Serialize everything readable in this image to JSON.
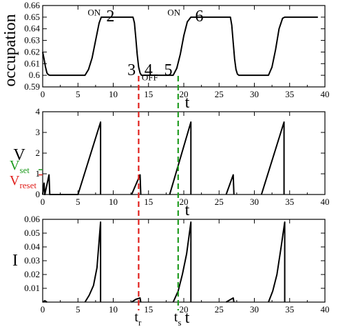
{
  "chart_data": [
    {
      "type": "line",
      "ylabel": "occupation",
      "xlabel": "t",
      "xlim": [
        0,
        40
      ],
      "ylim": [
        0.59,
        0.66
      ],
      "xticks": [
        0,
        5,
        10,
        15,
        20,
        25,
        30,
        35,
        40
      ],
      "yticks": [
        0.59,
        0.6,
        0.61,
        0.62,
        0.63,
        0.64,
        0.65,
        0.66
      ],
      "ytick_labels": [
        "0.59",
        "0.6",
        "0.61",
        "0.62",
        "0.63",
        "0.64",
        "0.65",
        "0.66"
      ],
      "series": [
        {
          "x": [
            0,
            0.2,
            0.4,
            0.6,
            0.8,
            1,
            6,
            6.5,
            7,
            7.5,
            8,
            8.3,
            12.8,
            13,
            13.2,
            13.4,
            13.6,
            13.8,
            14,
            18.5,
            19,
            19.5,
            20,
            20.5,
            21,
            21.3,
            26.6,
            26.8,
            27,
            27.2,
            27.4,
            27.6,
            27.8,
            32,
            32.5,
            33,
            33.5,
            34,
            34.3,
            39
          ],
          "y": [
            0.62,
            0.614,
            0.607,
            0.602,
            0.6005,
            0.6,
            0.6,
            0.605,
            0.615,
            0.63,
            0.645,
            0.65,
            0.65,
            0.645,
            0.632,
            0.618,
            0.607,
            0.602,
            0.6,
            0.6,
            0.606,
            0.618,
            0.634,
            0.646,
            0.65,
            0.65,
            0.65,
            0.643,
            0.628,
            0.614,
            0.605,
            0.601,
            0.6,
            0.6,
            0.607,
            0.622,
            0.64,
            0.649,
            0.65,
            0.65
          ]
        }
      ],
      "annotations": [
        {
          "text": "ON",
          "x": 7.3,
          "y": 0.6515
        },
        {
          "text": "2",
          "x": 9.6,
          "y": 0.6465
        },
        {
          "text": "ON",
          "x": 18.6,
          "y": 0.6515
        },
        {
          "text": "6",
          "x": 22.2,
          "y": 0.6465
        },
        {
          "text": "3",
          "x": 12.6,
          "y": 0.6
        },
        {
          "text": "4",
          "x": 15.0,
          "y": 0.6
        },
        {
          "text": "5",
          "x": 17.8,
          "y": 0.6
        },
        {
          "text": "OFF",
          "x": 15.2,
          "y": 0.5955
        }
      ]
    },
    {
      "type": "line",
      "ylabel": "V",
      "xlabel": "t",
      "xlim": [
        0,
        40
      ],
      "ylim": [
        0,
        4
      ],
      "xticks": [
        0,
        5,
        10,
        15,
        20,
        25,
        30,
        35,
        40
      ],
      "yticks": [
        0,
        1,
        2,
        3,
        4
      ],
      "ytick_labels": [
        "0",
        "1",
        "2",
        "3",
        "4"
      ],
      "series": [
        {
          "segments": [
            [
              [
                0,
                0
              ],
              [
                0.2,
                0.55
              ],
              [
                0.3,
                0
              ],
              [
                0.9,
                0.95
              ],
              [
                1,
                0
              ],
              [
                5,
                0
              ],
              [
                8.2,
                3.5
              ],
              [
                8.2,
                0
              ]
            ],
            [
              [
                12.6,
                0
              ],
              [
                13.8,
                0.95
              ],
              [
                13.9,
                0
              ]
            ],
            [
              [
                18,
                0
              ],
              [
                21,
                3.5
              ],
              [
                21,
                0
              ]
            ],
            [
              [
                26,
                0
              ],
              [
                27,
                0.95
              ],
              [
                27.1,
                0
              ]
            ],
            [
              [
                31,
                0
              ],
              [
                34.2,
                3.5
              ],
              [
                34.2,
                0
              ]
            ]
          ]
        }
      ],
      "extra_labels": [
        {
          "text": "V",
          "sub": "set",
          "color": "#1f9b1f",
          "y": 1.2
        },
        {
          "text": "V",
          "sub": "reset",
          "color": "#e0201c",
          "y": 0.95
        }
      ]
    },
    {
      "type": "line",
      "ylabel": "I",
      "xlabel": "t",
      "xlim": [
        0,
        40
      ],
      "ylim": [
        0,
        0.06
      ],
      "xticks": [
        0,
        5,
        10,
        15,
        20,
        25,
        30,
        35,
        40
      ],
      "yticks": [
        0.01,
        0.02,
        0.03,
        0.04,
        0.05,
        0.06
      ],
      "ytick_labels": [
        "0.01",
        "0.02",
        "0.03",
        "0.04",
        "0.05",
        "0.06"
      ],
      "series": [
        {
          "segments": [
            [
              [
                0,
                0
              ],
              [
                0.3,
                0.001
              ],
              [
                0.6,
                0
              ]
            ],
            [
              [
                6,
                0
              ],
              [
                6.6,
                0.005
              ],
              [
                7.2,
                0.012
              ],
              [
                7.7,
                0.025
              ],
              [
                8.2,
                0.058
              ],
              [
                8.2,
                0
              ]
            ],
            [
              [
                12.6,
                0
              ],
              [
                13.2,
                0.002
              ],
              [
                13.8,
                0.003
              ],
              [
                13.9,
                0
              ]
            ],
            [
              [
                18.5,
                0
              ],
              [
                19.2,
                0.008
              ],
              [
                19.8,
                0.02
              ],
              [
                20.4,
                0.035
              ],
              [
                21,
                0.058
              ],
              [
                21,
                0
              ]
            ],
            [
              [
                26,
                0
              ],
              [
                26.5,
                0.0015
              ],
              [
                27,
                0.003
              ],
              [
                27.1,
                0
              ]
            ],
            [
              [
                32,
                0
              ],
              [
                32.6,
                0.008
              ],
              [
                33.2,
                0.02
              ],
              [
                33.8,
                0.04
              ],
              [
                34.3,
                0.058
              ],
              [
                34.3,
                0
              ]
            ]
          ]
        }
      ]
    }
  ],
  "vlines": [
    {
      "x": 13.6,
      "color": "#e0201c",
      "label": "t",
      "sub": "r"
    },
    {
      "x": 19.2,
      "color": "#1f9b1f",
      "label": "t",
      "sub": "s"
    }
  ]
}
